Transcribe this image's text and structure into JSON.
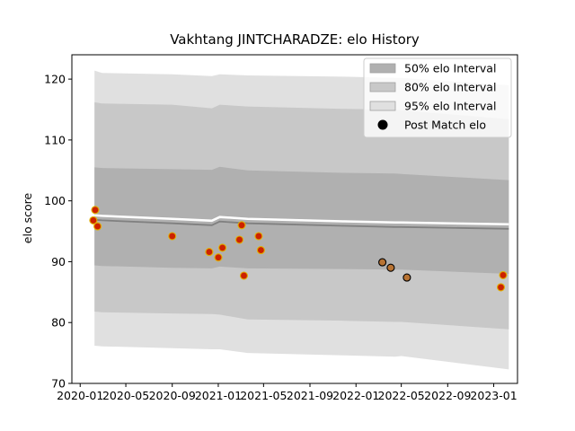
{
  "chart_data": {
    "type": "line",
    "title": "Vakhtang JINTCHARADZE: elo History",
    "xlabel": "",
    "ylabel": "elo score",
    "x_ticks": [
      "2020-01",
      "2020-05",
      "2020-09",
      "2021-01",
      "2021-05",
      "2021-09",
      "2022-01",
      "2022-05",
      "2022-09",
      "2023-01"
    ],
    "y_ticks": [
      70,
      80,
      90,
      100,
      110,
      120
    ],
    "xlim": [
      "2019-12-10",
      "2023-03-05"
    ],
    "ylim": [
      70,
      124
    ],
    "grid": false,
    "legend_position": "top-right",
    "legend": [
      {
        "label": "50% elo Interval",
        "color": "#b0b0b0",
        "kind": "band"
      },
      {
        "label": "80% elo Interval",
        "color": "#c8c8c8",
        "kind": "band"
      },
      {
        "label": "95% elo Interval",
        "color": "#e0e0e0",
        "kind": "band"
      },
      {
        "label": "Post Match elo",
        "color": "#000000",
        "kind": "marker"
      }
    ],
    "band_x": [
      "2020-02-08",
      "2020-02-28",
      "2020-09-01",
      "2020-12-15",
      "2021-01-05",
      "2021-03-20",
      "2021-12-01",
      "2022-04-15",
      "2022-05-01",
      "2023-02-10"
    ],
    "expected": [
      96.9,
      96.8,
      96.3,
      96.0,
      96.6,
      96.3,
      95.9,
      95.7,
      95.7,
      95.4
    ],
    "band50": {
      "upper": [
        105.5,
        105.4,
        105.2,
        105.1,
        105.6,
        105.0,
        104.6,
        104.5,
        104.4,
        103.4
      ],
      "lower": [
        89.4,
        89.3,
        89.0,
        88.9,
        89.2,
        88.9,
        88.8,
        88.7,
        88.7,
        88.0
      ]
    },
    "band80": {
      "upper": [
        116.2,
        116.0,
        115.8,
        115.2,
        115.8,
        115.5,
        115.1,
        115.0,
        114.9,
        113.4
      ],
      "lower": [
        81.8,
        81.7,
        81.5,
        81.4,
        81.3,
        80.5,
        80.3,
        80.1,
        80.1,
        78.9
      ]
    },
    "band95": {
      "upper": [
        121.4,
        121.0,
        120.8,
        120.5,
        120.8,
        120.6,
        120.4,
        120.2,
        120.2,
        119.0
      ],
      "lower": [
        76.2,
        76.1,
        75.8,
        75.6,
        75.6,
        75.0,
        74.6,
        74.4,
        74.5,
        72.3
      ]
    },
    "series": [
      {
        "name": "Post Match elo",
        "points": [
          {
            "x": "2020-02-05",
            "y": 96.8,
            "color": "#cc2200"
          },
          {
            "x": "2020-02-10",
            "y": 98.5,
            "color": "#cc2200"
          },
          {
            "x": "2020-02-16",
            "y": 95.8,
            "color": "#cc2200"
          },
          {
            "x": "2020-09-01",
            "y": 94.2,
            "color": "#cc2200"
          },
          {
            "x": "2020-12-08",
            "y": 91.6,
            "color": "#cc2200"
          },
          {
            "x": "2021-01-01",
            "y": 90.7,
            "color": "#cc2200"
          },
          {
            "x": "2021-01-12",
            "y": 92.3,
            "color": "#cc2200"
          },
          {
            "x": "2021-02-26",
            "y": 93.6,
            "color": "#cc2200"
          },
          {
            "x": "2021-03-04",
            "y": 96.0,
            "color": "#cc2200"
          },
          {
            "x": "2021-03-10",
            "y": 87.7,
            "color": "#cc2200"
          },
          {
            "x": "2021-04-18",
            "y": 94.2,
            "color": "#cc2200"
          },
          {
            "x": "2021-04-24",
            "y": 91.9,
            "color": "#cc2200"
          },
          {
            "x": "2022-03-12",
            "y": 89.9,
            "color": "#b87333"
          },
          {
            "x": "2022-04-03",
            "y": 89.0,
            "color": "#b87333"
          },
          {
            "x": "2022-05-16",
            "y": 87.4,
            "color": "#b87333"
          },
          {
            "x": "2023-01-20",
            "y": 85.8,
            "color": "#cc2200"
          },
          {
            "x": "2023-01-26",
            "y": 87.8,
            "color": "#cc2200"
          }
        ]
      }
    ]
  }
}
